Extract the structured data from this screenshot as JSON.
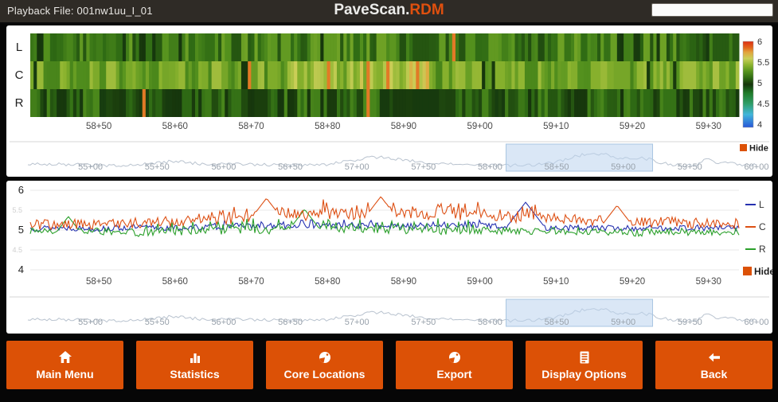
{
  "header": {
    "playback_label": "Playback File: 001nw1uu_I_01",
    "title_main": "PaveScan",
    "title_dot": ".",
    "title_accent": "RDM",
    "status_box_value": ""
  },
  "hide_label": "Hide",
  "colors": {
    "accent_orange": "#DC5106",
    "title_accent": "#E0500E",
    "series_L": "#2631B0",
    "series_C": "#DD5014",
    "series_R": "#2BA02B",
    "nav_line": "#B9C3CF",
    "selection_fill": "rgba(187,212,238,0.55)",
    "selection_border": "#A8C6E2",
    "nav_tick_color": "#98A1AB",
    "axis_tick_color": "#4A4A4A",
    "topbar_bg": "#2F2B26",
    "page_bg": "#060606",
    "panel_bg": "#FFFFFF"
  },
  "buttons": [
    {
      "label": "Main Menu",
      "icon": "home-icon"
    },
    {
      "label": "Statistics",
      "icon": "bar-chart-icon"
    },
    {
      "label": "Core Locations",
      "icon": "globe-pie-icon"
    },
    {
      "label": "Export",
      "icon": "globe-pie-icon"
    },
    {
      "label": "Display Options",
      "icon": "list-document-icon"
    },
    {
      "label": "Back",
      "icon": "back-arrow-icon"
    }
  ],
  "chart_data": [
    {
      "type": "heatmap",
      "name": "dielectric-strip-heatmap",
      "rows": [
        "L",
        "C",
        "R"
      ],
      "x_ticks": [
        "58+50",
        "58+60",
        "58+70",
        "58+80",
        "58+90",
        "59+00",
        "59+10",
        "59+20",
        "59+30"
      ],
      "x_domain": [
        5841,
        5934
      ],
      "n_columns": 215,
      "seed": 77,
      "value_scale": {
        "min": 4,
        "max": 6,
        "tick_labels": [
          "6",
          "5.5",
          "5",
          "4.5",
          "4"
        ],
        "color_stops": [
          [
            4.0,
            "#2857D8"
          ],
          [
            4.3,
            "#41B6DA"
          ],
          [
            4.55,
            "#2F9E68"
          ],
          [
            4.8,
            "#1F7A28"
          ],
          [
            5.0,
            "#16350C"
          ],
          [
            5.15,
            "#2F6B14"
          ],
          [
            5.3,
            "#55921E"
          ],
          [
            5.45,
            "#8BB32E"
          ],
          [
            5.6,
            "#C9CF58"
          ],
          [
            5.75,
            "#E2A33C"
          ],
          [
            5.85,
            "#E2691D"
          ],
          [
            6.0,
            "#DD2F14"
          ]
        ]
      },
      "row_params": [
        {
          "label": "L",
          "base": 5.22,
          "spread": 0.16,
          "dark_prob": 0.1,
          "hot_cols": [
            0.594
          ]
        },
        {
          "label": "C",
          "base": 5.38,
          "spread": 0.14,
          "dark_prob": 0.06,
          "hot_cols": [
            0.305,
            0.42,
            0.475,
            0.5,
            0.545
          ],
          "bright_band": {
            "from": 0.36,
            "to": 0.56,
            "boost": 0.12
          }
        },
        {
          "label": "R",
          "base": 5.12,
          "spread": 0.15,
          "dark_prob": 0.15,
          "hot_cols": [
            0.158,
            0.474
          ]
        }
      ],
      "hot_value": 5.82,
      "dark_value": 5.0
    },
    {
      "type": "line",
      "name": "dielectric-profile",
      "x_ticks": [
        "58+50",
        "58+60",
        "58+70",
        "58+80",
        "58+90",
        "59+00",
        "59+10",
        "59+20",
        "59+30"
      ],
      "x_domain": [
        5841,
        5934
      ],
      "ylim": [
        3.78,
        6.12
      ],
      "y_ticks_major": [
        "6",
        "5",
        "4"
      ],
      "y_ticks_minor": [
        "5.5",
        "4.5"
      ],
      "seed": 13,
      "anchor_x_start": 5840,
      "anchor_x_step": 5,
      "legend": [
        "L",
        "C",
        "R"
      ],
      "hide_label": "Hide",
      "draw_order": [
        0,
        2,
        1
      ],
      "series": [
        {
          "name": "L",
          "color_key": "series_L",
          "jitter": 0.075,
          "anchors": [
            5.04,
            5.06,
            5.03,
            5.07,
            5.05,
            5.08,
            5.09,
            5.1,
            5.12,
            5.11,
            5.1,
            5.08,
            5.14,
            5.06,
            5.05,
            5.06,
            5.04,
            5.06,
            5.05
          ],
          "band_boost": {
            "from": 5865,
            "to": 5900,
            "amp": 0.1
          },
          "spikes": [
            {
              "station": 5906,
              "value": 5.7
            }
          ]
        },
        {
          "name": "C",
          "color_key": "series_C",
          "jitter": 0.13,
          "anchors": [
            5.12,
            5.15,
            5.14,
            5.18,
            5.22,
            5.26,
            5.3,
            5.34,
            5.4,
            5.38,
            5.42,
            5.38,
            5.32,
            5.28,
            5.3,
            5.24,
            5.18,
            5.2,
            5.16
          ],
          "band_boost": {
            "from": 5862,
            "to": 5908,
            "amp": 0.32
          },
          "spikes": [
            {
              "station": 5872,
              "value": 5.8
            },
            {
              "station": 5887,
              "value": 5.84
            },
            {
              "station": 5918,
              "value": 5.62
            }
          ]
        },
        {
          "name": "R",
          "color_key": "series_R",
          "jitter": 0.095,
          "anchors": [
            4.96,
            4.94,
            4.97,
            4.93,
            4.96,
            4.99,
            4.97,
            5.01,
            5.0,
            5.02,
            5.0,
            4.98,
            4.99,
            4.97,
            4.98,
            4.96,
            4.93,
            4.97,
            4.95
          ],
          "band_boost": {
            "from": 5856,
            "to": 5900,
            "amp": 0.24
          },
          "spikes": [
            {
              "station": 5877,
              "value": 5.52
            },
            {
              "station": 5846,
              "value": 5.34
            }
          ]
        }
      ]
    },
    {
      "type": "area-overview",
      "name": "station-overview-navigator",
      "x_ticks": [
        "55+00",
        "55+50",
        "56+00",
        "56+50",
        "57+00",
        "57+50",
        "58+00",
        "58+50",
        "59+00",
        "59+50",
        "60+00"
      ],
      "x_domain": [
        5453,
        6000
      ],
      "selection": [
        5812,
        5922
      ],
      "seed": 5,
      "baseline_y": 27,
      "noise": 2.0,
      "bumps": [
        {
          "center": 5560,
          "height": 4,
          "width": 18
        },
        {
          "center": 5715,
          "height": 9,
          "width": 28
        },
        {
          "center": 5878,
          "height": 13,
          "width": 26
        },
        {
          "center": 5917,
          "height": 6,
          "width": 12
        },
        {
          "center": 5963,
          "height": 9,
          "width": 5
        },
        {
          "center": 5978,
          "height": 4,
          "width": 6
        }
      ],
      "hide_label": "Hide"
    }
  ]
}
